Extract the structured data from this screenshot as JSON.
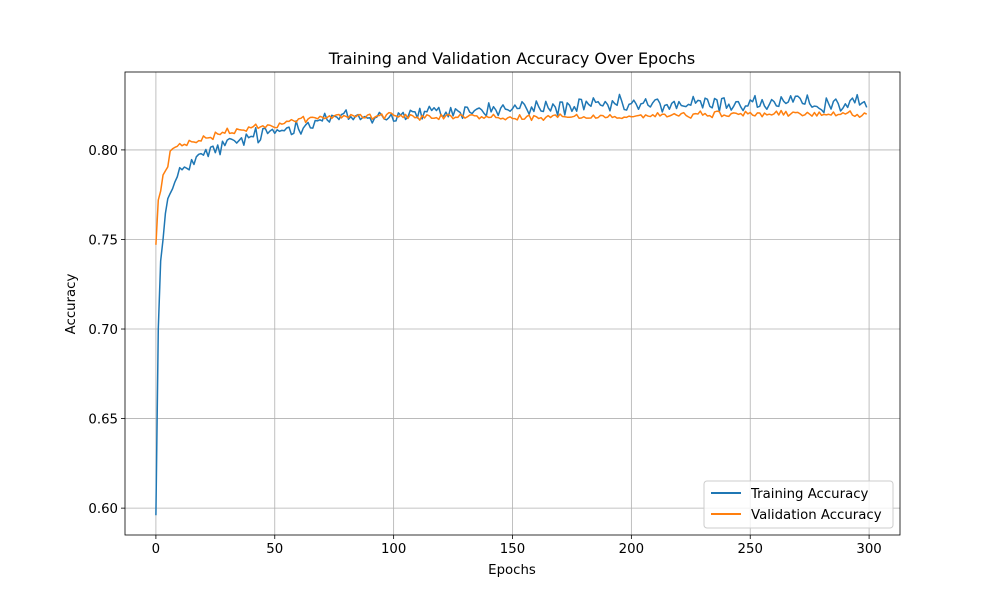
{
  "chart_data": {
    "type": "line",
    "title": "Training and Validation Accuracy Over Epochs",
    "xlabel": "Epochs",
    "ylabel": "Accuracy",
    "xlim": [
      -13,
      313
    ],
    "ylim": [
      0.585,
      0.8435
    ],
    "xticks": [
      0,
      50,
      100,
      150,
      200,
      250,
      300
    ],
    "yticks": [
      0.6,
      0.65,
      0.7,
      0.75,
      0.8
    ],
    "ytick_labels": [
      "0.60",
      "0.65",
      "0.70",
      "0.75",
      "0.80"
    ],
    "grid": true,
    "legend_position": "lower-right",
    "x_range": [
      0,
      299
    ],
    "series": [
      {
        "name": "Training Accuracy",
        "color": "#1f77b4",
        "anchors": [
          [
            0,
            0.596
          ],
          [
            1,
            0.7
          ],
          [
            2,
            0.738
          ],
          [
            3,
            0.75
          ],
          [
            4,
            0.769
          ],
          [
            6,
            0.775
          ],
          [
            8,
            0.781
          ],
          [
            10,
            0.786
          ],
          [
            12,
            0.791
          ],
          [
            15,
            0.793
          ],
          [
            20,
            0.797
          ],
          [
            25,
            0.8
          ],
          [
            30,
            0.803
          ],
          [
            40,
            0.807
          ],
          [
            50,
            0.81
          ],
          [
            60,
            0.814
          ],
          [
            70,
            0.817
          ],
          [
            80,
            0.818
          ],
          [
            100,
            0.819
          ],
          [
            120,
            0.821
          ],
          [
            150,
            0.823
          ],
          [
            200,
            0.825
          ],
          [
            250,
            0.826
          ],
          [
            299,
            0.826
          ]
        ],
        "noise": [
          0.0024,
          0.0026
        ]
      },
      {
        "name": "Validation Accuracy",
        "color": "#ff7f0e",
        "anchors": [
          [
            0,
            0.747
          ],
          [
            1,
            0.772
          ],
          [
            2,
            0.777
          ],
          [
            3,
            0.786
          ],
          [
            5,
            0.791
          ],
          [
            6,
            0.799
          ],
          [
            8,
            0.801
          ],
          [
            12,
            0.803
          ],
          [
            20,
            0.806
          ],
          [
            30,
            0.81
          ],
          [
            40,
            0.812
          ],
          [
            50,
            0.814
          ],
          [
            60,
            0.817
          ],
          [
            70,
            0.818
          ],
          [
            80,
            0.819
          ],
          [
            100,
            0.819
          ],
          [
            120,
            0.819
          ],
          [
            150,
            0.818
          ],
          [
            200,
            0.819
          ],
          [
            250,
            0.82
          ],
          [
            299,
            0.82
          ]
        ],
        "noise": [
          0.0009,
          0.001
        ]
      }
    ]
  }
}
